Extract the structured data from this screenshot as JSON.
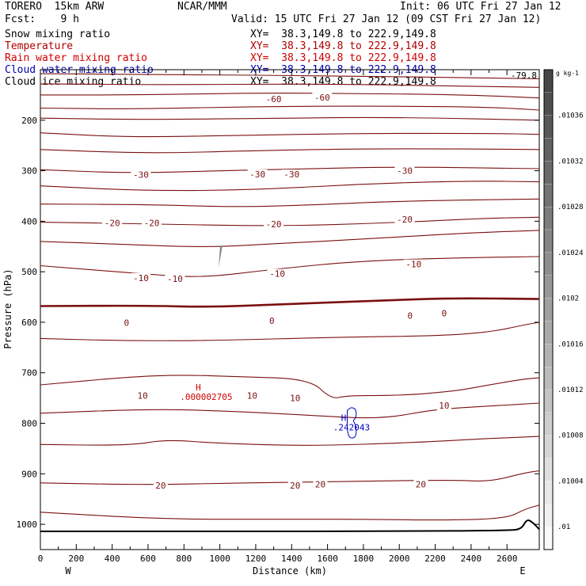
{
  "header": {
    "model": "TORERO  15km ARW",
    "center": "NCAR/MMM",
    "init": "Init: 06 UTC Fri 27 Jan 12",
    "fcst": "Fcst:    9 h",
    "valid": "Valid: 15 UTC Fri 27 Jan 12 (09 CST Fri 27 Jan 12)"
  },
  "fields": [
    {
      "name": "Snow mixing ratio",
      "xy": "XY=  38.3,149.8 to 222.9,149.8",
      "color": "#000000"
    },
    {
      "name": "Temperature",
      "xy": "XY=  38.3,149.8 to 222.9,149.8",
      "color": "#b00000"
    },
    {
      "name": "Rain water mixing ratio",
      "xy": "XY=  38.3,149.8 to 222.9,149.8",
      "color": "#d00000"
    },
    {
      "name": "Cloud water mixing ratio",
      "xy": "XY=  38.3,149.8 to 222.9,149.8",
      "color": "#0000b0"
    },
    {
      "name": "Cloud ice mixing ratio",
      "xy": "XY=  38.3,149.8 to 222.9,149.8",
      "color": "#000000"
    }
  ],
  "chart_data": {
    "type": "contour-cross-section",
    "xlabel": "Distance (km)",
    "ylabel": "Pressure (hPa)",
    "xlim": [
      0,
      2780
    ],
    "ylim": [
      1050,
      100
    ],
    "x_ticks": [
      0,
      100,
      200,
      300,
      400,
      500,
      600,
      700,
      800,
      900,
      1000,
      1100,
      1200,
      1300,
      1400,
      1500,
      1600,
      1700,
      1800,
      1900,
      2000,
      2100,
      2200,
      2300,
      2400,
      2500,
      2600
    ],
    "x_tick_labels": [
      "0",
      "200",
      "400",
      "600",
      "800",
      "1000",
      "1200",
      "1400",
      "1600",
      "1800",
      "2000",
      "2200",
      "2400",
      "2600"
    ],
    "y_ticks": [
      200,
      300,
      400,
      500,
      600,
      700,
      800,
      900,
      1000
    ],
    "west_label": "W",
    "east_label": "E",
    "max_label": "-79.8",
    "temperature_contours": [
      {
        "level": -75,
        "pts": [
          [
            0,
            108
          ],
          [
            800,
            110
          ],
          [
            1600,
            112
          ],
          [
            2400,
            116
          ],
          [
            2780,
            118
          ]
        ]
      },
      {
        "level": -70,
        "pts": [
          [
            0,
            128
          ],
          [
            700,
            130
          ],
          [
            1500,
            128
          ],
          [
            2300,
            132
          ],
          [
            2780,
            135
          ]
        ]
      },
      {
        "level": -60,
        "pts": [
          [
            0,
            150
          ],
          [
            600,
            150
          ],
          [
            1200,
            146
          ],
          [
            1800,
            147
          ],
          [
            2400,
            150
          ],
          [
            2780,
            156
          ]
        ]
      },
      {
        "level": -55,
        "pts": [
          [
            0,
            176
          ],
          [
            500,
            178
          ],
          [
            1200,
            173
          ],
          [
            1900,
            172
          ],
          [
            2500,
            174
          ],
          [
            2780,
            180
          ]
        ]
      },
      {
        "level": -50,
        "pts": [
          [
            0,
            196
          ],
          [
            600,
            199
          ],
          [
            1300,
            196
          ],
          [
            2000,
            194
          ],
          [
            2780,
            200
          ]
        ]
      },
      {
        "level": -45,
        "pts": [
          [
            0,
            225
          ],
          [
            500,
            234
          ],
          [
            1100,
            230
          ],
          [
            1800,
            226
          ],
          [
            2500,
            226
          ],
          [
            2780,
            228
          ]
        ]
      },
      {
        "level": -40,
        "pts": [
          [
            0,
            258
          ],
          [
            600,
            266
          ],
          [
            1200,
            260
          ],
          [
            1900,
            256
          ],
          [
            2780,
            258
          ]
        ]
      },
      {
        "level": -30,
        "pts": [
          [
            0,
            298
          ],
          [
            500,
            305
          ],
          [
            1000,
            300
          ],
          [
            1400,
            297
          ],
          [
            2000,
            292
          ],
          [
            2780,
            296
          ]
        ]
      },
      {
        "level": -25,
        "pts": [
          [
            0,
            330
          ],
          [
            600,
            340
          ],
          [
            1200,
            338
          ],
          [
            1800,
            326
          ],
          [
            2400,
            320
          ],
          [
            2780,
            322
          ]
        ]
      },
      {
        "level": -20,
        "pts": [
          [
            0,
            366
          ],
          [
            600,
            367
          ],
          [
            1100,
            372
          ],
          [
            1500,
            368
          ],
          [
            2000,
            360
          ],
          [
            2780,
            356
          ]
        ]
      },
      {
        "level": -15,
        "pts": [
          [
            0,
            402
          ],
          [
            600,
            405
          ],
          [
            1300,
            410
          ],
          [
            1900,
            404
          ],
          [
            2500,
            394
          ],
          [
            2780,
            392
          ]
        ]
      },
      {
        "level": -10,
        "pts": [
          [
            0,
            440
          ],
          [
            500,
            446
          ],
          [
            900,
            452
          ],
          [
            1300,
            445
          ],
          [
            1800,
            435
          ],
          [
            2400,
            423
          ],
          [
            2780,
            418
          ]
        ]
      },
      {
        "level": -5,
        "pts": [
          [
            0,
            488
          ],
          [
            600,
            505
          ],
          [
            900,
            512
          ],
          [
            1300,
            495
          ],
          [
            1800,
            478
          ],
          [
            2400,
            472
          ],
          [
            2780,
            470
          ]
        ]
      },
      {
        "level": 0,
        "bold": true,
        "pts": [
          [
            0,
            568
          ],
          [
            600,
            567
          ],
          [
            950,
            570
          ],
          [
            1300,
            565
          ],
          [
            1900,
            557
          ],
          [
            2300,
            552
          ],
          [
            2780,
            554
          ]
        ]
      },
      {
        "level": 5,
        "pts": [
          [
            0,
            632
          ],
          [
            500,
            637
          ],
          [
            1000,
            636
          ],
          [
            1600,
            630
          ],
          [
            2200,
            627
          ],
          [
            2500,
            620
          ],
          [
            2700,
            605
          ],
          [
            2780,
            600
          ]
        ]
      },
      {
        "level": 10,
        "pts": [
          [
            0,
            724
          ],
          [
            500,
            708
          ],
          [
            800,
            704
          ],
          [
            1100,
            708
          ],
          [
            1500,
            712
          ],
          [
            1620,
            752
          ],
          [
            1700,
            746
          ],
          [
            1800,
            745
          ],
          [
            2000,
            745
          ],
          [
            2300,
            737
          ],
          [
            2500,
            724
          ],
          [
            2700,
            712
          ],
          [
            2780,
            710
          ]
        ]
      },
      {
        "level": 15,
        "pts": [
          [
            0,
            780
          ],
          [
            600,
            772
          ],
          [
            1000,
            775
          ],
          [
            1500,
            784
          ],
          [
            1900,
            792
          ],
          [
            2200,
            772
          ],
          [
            2500,
            766
          ],
          [
            2780,
            760
          ]
        ]
      },
      {
        "level": 20,
        "pts": [
          [
            0,
            842
          ],
          [
            500,
            844
          ],
          [
            700,
            832
          ],
          [
            1000,
            840
          ],
          [
            1500,
            845
          ],
          [
            2100,
            838
          ],
          [
            2500,
            830
          ],
          [
            2780,
            826
          ]
        ]
      },
      {
        "level": 25,
        "pts": [
          [
            0,
            918
          ],
          [
            600,
            922
          ],
          [
            1100,
            918
          ],
          [
            1600,
            916
          ],
          [
            2300,
            912
          ],
          [
            2500,
            916
          ],
          [
            2700,
            898
          ],
          [
            2780,
            894
          ]
        ]
      },
      {
        "level": 30,
        "pts": [
          [
            0,
            976
          ],
          [
            700,
            990
          ],
          [
            1300,
            990
          ],
          [
            1800,
            990
          ],
          [
            2300,
            992
          ],
          [
            2600,
            988
          ],
          [
            2700,
            970
          ],
          [
            2780,
            962
          ]
        ]
      }
    ],
    "terrain": {
      "pts": [
        [
          0,
          1014
        ],
        [
          1000,
          1014
        ],
        [
          2000,
          1014
        ],
        [
          2600,
          1012
        ],
        [
          2680,
          1010
        ],
        [
          2710,
          990
        ],
        [
          2740,
          995
        ],
        [
          2780,
          1010
        ]
      ]
    },
    "contour_labels": [
      {
        "text": "-60",
        "x": 1300,
        "y": 158
      },
      {
        "text": "-60",
        "x": 1570,
        "y": 155
      },
      {
        "text": "-30",
        "x": 560,
        "y": 308
      },
      {
        "text": "-30",
        "x": 1210,
        "y": 307
      },
      {
        "text": "-30",
        "x": 1400,
        "y": 307
      },
      {
        "text": "-30",
        "x": 2030,
        "y": 300
      },
      {
        "text": "-20",
        "x": 400,
        "y": 403
      },
      {
        "text": "-20",
        "x": 620,
        "y": 403
      },
      {
        "text": "-20",
        "x": 1300,
        "y": 406
      },
      {
        "text": "-20",
        "x": 2030,
        "y": 396
      },
      {
        "text": "-10",
        "x": 560,
        "y": 512
      },
      {
        "text": "-10",
        "x": 750,
        "y": 514
      },
      {
        "text": "-10",
        "x": 1320,
        "y": 504
      },
      {
        "text": "-10",
        "x": 2080,
        "y": 485
      },
      {
        "text": "0",
        "x": 480,
        "y": 601
      },
      {
        "text": "0",
        "x": 1290,
        "y": 597
      },
      {
        "text": "0",
        "x": 2060,
        "y": 587
      },
      {
        "text": "0",
        "x": 2250,
        "y": 582
      },
      {
        "text": "10",
        "x": 570,
        "y": 745
      },
      {
        "text": "10",
        "x": 1180,
        "y": 745
      },
      {
        "text": "10",
        "x": 1420,
        "y": 750
      },
      {
        "text": "10",
        "x": 2250,
        "y": 765
      },
      {
        "text": "20",
        "x": 670,
        "y": 923
      },
      {
        "text": "20",
        "x": 1420,
        "y": 923
      },
      {
        "text": "20",
        "x": 1560,
        "y": 921
      },
      {
        "text": "20",
        "x": 2120,
        "y": 921
      }
    ],
    "rain_max": {
      "mark": "H",
      "value": ".000002705",
      "x": 880,
      "y": 735,
      "color": "#d00000"
    },
    "cloud_water_max": {
      "mark": "H",
      "value": ".242043",
      "x": 1690,
      "y": 795,
      "color": "#0000c0"
    },
    "cloud_water_contour": {
      "pts": [
        [
          1710,
          775
        ],
        [
          1730,
          768
        ],
        [
          1760,
          772
        ],
        [
          1760,
          790
        ],
        [
          1740,
          794
        ],
        [
          1760,
          805
        ],
        [
          1760,
          828
        ],
        [
          1720,
          830
        ],
        [
          1710,
          812
        ]
      ]
    },
    "colorbar": {
      "unit": "g kg-1",
      "labels": [
        ".01036",
        ".01032",
        ".01028",
        ".01024",
        ".0102",
        ".01016",
        ".01012",
        ".01008",
        ".01004",
        ".01"
      ]
    }
  }
}
